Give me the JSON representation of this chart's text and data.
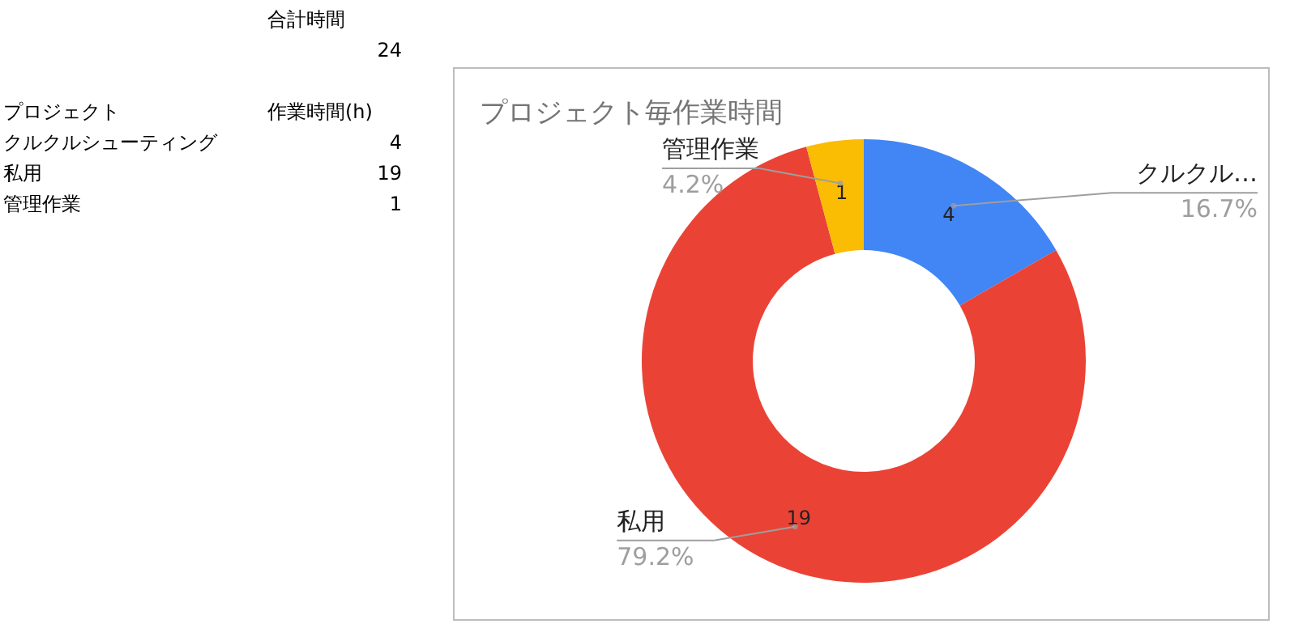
{
  "chart_data": {
    "type": "donut",
    "title": "プロジェクト毎作業時間",
    "categories": [
      "クルクル…",
      "私用",
      "管理作業"
    ],
    "values": [
      4,
      19,
      1
    ],
    "colors": [
      "#4285f4",
      "#ea4335",
      "#fbbc04"
    ],
    "data_labels": true,
    "annotations": [
      "合計時間",
      "24",
      "プロジェクト",
      "作業時間(h)",
      "クルクルシューティング",
      "4",
      "私用",
      "19",
      "管理作業",
      "1",
      {
        "text": "16.7%",
        "x": "クルクル…"
      },
      {
        "text": "79.2%",
        "x": "私用"
      },
      {
        "text": "4.2%",
        "x": "管理作業"
      }
    ]
  }
}
